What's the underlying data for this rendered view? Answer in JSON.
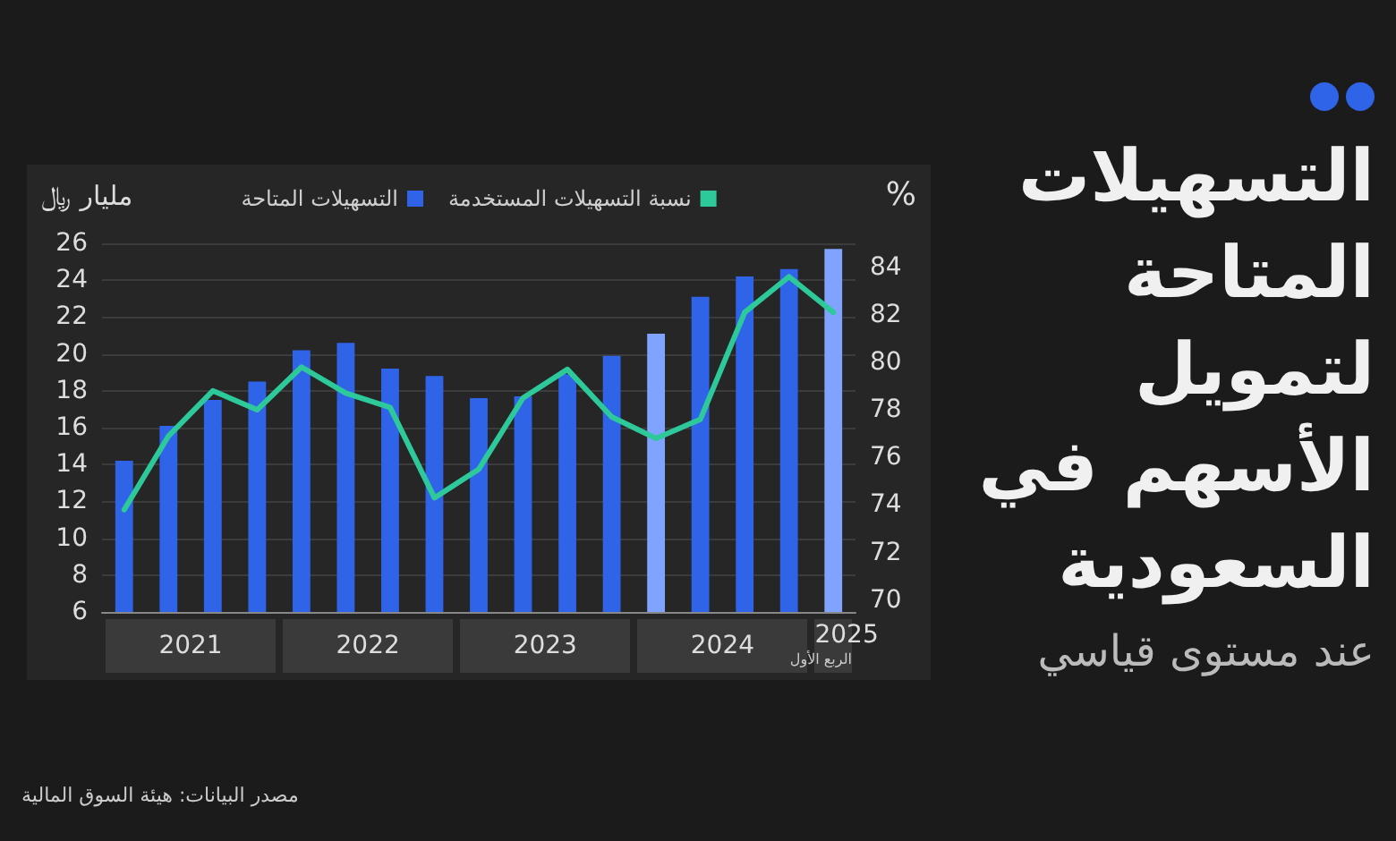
{
  "chart_data": {
    "type": "bar",
    "title": "التسهيلات المتاحة لتمويل الأسهم في السعودية",
    "subtitle": "عند مستوى قياسي",
    "ylabel": "مليار ﷼",
    "y2label": "%",
    "annotations": [
      "2021",
      "2022",
      "2023",
      "2024",
      "2025",
      "الربع الأول",
      "مصدر البيانات: هيئة السوق المالية"
    ],
    "categories": [
      null,
      null,
      null,
      null,
      null,
      null,
      null,
      null,
      null,
      null,
      null,
      null,
      null,
      null,
      null,
      null,
      null
    ],
    "series": [
      {
        "name": "التسهيلات المتاحة",
        "color": "#2f64e8",
        "colors": [
          "#2f64e8",
          "#2f64e8",
          "#2f64e8",
          "#2f64e8",
          "#2f64e8",
          "#2f64e8",
          "#2f64e8",
          "#2f64e8",
          "#2f64e8",
          "#2f64e8",
          "#2f64e8",
          "#2f64e8",
          "#7fa3ff",
          "#2f64e8",
          "#2f64e8",
          "#2f64e8",
          "#7fa3ff"
        ],
        "values": [
          14.2,
          16.1,
          17.5,
          18.5,
          20.2,
          20.6,
          19.2,
          18.8,
          17.6,
          17.7,
          18.9,
          19.9,
          21.1,
          23.1,
          24.2,
          24.6,
          25.7
        ]
      },
      {
        "name": "نسبة التسهيلات المستخدمة",
        "type": "line",
        "axis": "y2",
        "color": "#2ec99a",
        "values": [
          73.8,
          76.9,
          78.8,
          78.0,
          79.8,
          78.7,
          78.1,
          74.3,
          75.5,
          78.5,
          79.7,
          77.7,
          76.8,
          77.6,
          82.1,
          83.6,
          82.1
        ]
      }
    ],
    "ylim": [
      6,
      26
    ],
    "yticks": [
      6,
      8,
      10,
      12,
      14,
      16,
      18,
      20,
      22,
      24,
      26
    ],
    "y2lim": [
      69.5,
      85
    ],
    "y2ticks": [
      70,
      72,
      74,
      76,
      78,
      80,
      82,
      84
    ],
    "grid": "y",
    "legend": "top",
    "marker": "none",
    "line_style": "solid"
  }
}
